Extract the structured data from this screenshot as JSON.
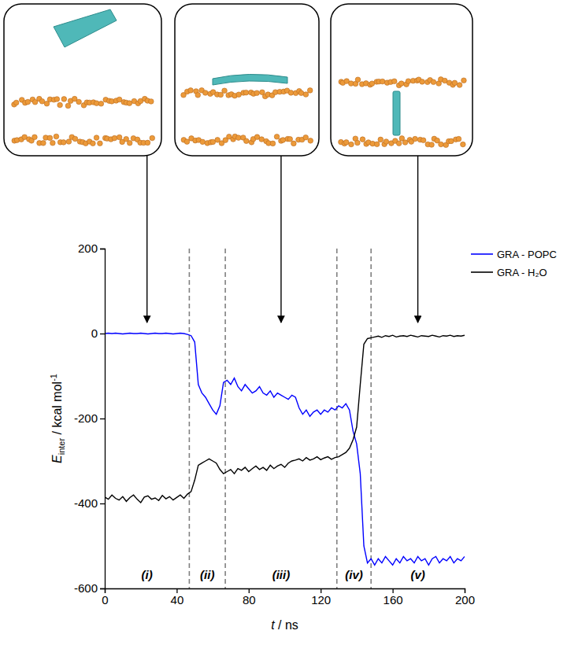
{
  "chart_data": {
    "type": "line",
    "xlabel": {
      "symbol": "t",
      "text": " / ns"
    },
    "ylabel": {
      "symbol": "E",
      "subscript": "inter",
      "text": " / kcal mol",
      "superscript": "-1"
    },
    "xlim": [
      0,
      200
    ],
    "xticks": [
      0,
      40,
      80,
      120,
      160,
      200
    ],
    "ylim": [
      -600,
      200
    ],
    "yticks": [
      -600,
      -400,
      -200,
      0,
      200
    ],
    "legend": "right",
    "dividers": [
      47,
      67,
      129,
      148
    ],
    "regions": [
      "(i)",
      "(ii)",
      "(iii)",
      "(iv)",
      "(v)"
    ],
    "x": [
      0,
      2,
      4,
      6,
      8,
      10,
      12,
      14,
      16,
      18,
      20,
      22,
      24,
      26,
      28,
      30,
      32,
      34,
      36,
      38,
      40,
      42,
      44,
      46,
      48,
      50,
      52,
      54,
      56,
      58,
      60,
      62,
      64,
      66,
      68,
      70,
      72,
      74,
      76,
      78,
      80,
      82,
      84,
      86,
      88,
      90,
      92,
      94,
      96,
      98,
      100,
      102,
      104,
      106,
      108,
      110,
      112,
      114,
      116,
      118,
      120,
      122,
      124,
      126,
      128,
      130,
      132,
      134,
      136,
      138,
      140,
      142,
      144,
      146,
      148,
      150,
      152,
      154,
      156,
      158,
      160,
      162,
      164,
      166,
      168,
      170,
      172,
      174,
      176,
      178,
      180,
      182,
      184,
      186,
      188,
      190,
      192,
      194,
      196,
      198,
      200
    ],
    "series": [
      {
        "name": "GRA - POPC",
        "color": "#0000ff",
        "values": [
          0,
          1,
          0,
          1,
          0,
          -1,
          0,
          1,
          0,
          0,
          1,
          0,
          -1,
          0,
          1,
          0,
          0,
          1,
          0,
          -1,
          0,
          1,
          0,
          -2,
          -5,
          -20,
          -120,
          -140,
          -150,
          -165,
          -180,
          -190,
          -170,
          -115,
          -110,
          -120,
          -105,
          -125,
          -135,
          -120,
          -130,
          -140,
          -135,
          -125,
          -140,
          -145,
          -135,
          -150,
          -140,
          -145,
          -150,
          -155,
          -145,
          -150,
          -175,
          -190,
          -180,
          -195,
          -185,
          -180,
          -190,
          -180,
          -185,
          -175,
          -180,
          -170,
          -175,
          -165,
          -180,
          -230,
          -260,
          -330,
          -500,
          -540,
          -530,
          -545,
          -530,
          -540,
          -525,
          -535,
          -545,
          -530,
          -540,
          -525,
          -535,
          -530,
          -540,
          -525,
          -535,
          -530,
          -545,
          -530,
          -525,
          -540,
          -530,
          -535,
          -525,
          -540,
          -530,
          -535,
          -525
        ]
      },
      {
        "name": "GRA - H₂O",
        "color": "#000000",
        "values": [
          -385,
          -390,
          -380,
          -388,
          -392,
          -384,
          -395,
          -386,
          -380,
          -390,
          -398,
          -385,
          -382,
          -390,
          -387,
          -393,
          -381,
          -389,
          -384,
          -392,
          -386,
          -380,
          -388,
          -378,
          -372,
          -345,
          -310,
          -305,
          -300,
          -295,
          -300,
          -305,
          -320,
          -330,
          -325,
          -320,
          -330,
          -318,
          -322,
          -315,
          -325,
          -318,
          -312,
          -320,
          -315,
          -322,
          -310,
          -318,
          -312,
          -308,
          -315,
          -305,
          -300,
          -298,
          -295,
          -300,
          -292,
          -298,
          -295,
          -290,
          -297,
          -293,
          -290,
          -296,
          -292,
          -290,
          -285,
          -280,
          -270,
          -250,
          -220,
          -120,
          -25,
          -12,
          -10,
          -8,
          -6,
          -9,
          -5,
          -7,
          -4,
          -8,
          -6,
          -5,
          -7,
          -4,
          -6,
          -8,
          -5,
          -6,
          -7,
          -4,
          -6,
          -8,
          -5,
          -6,
          -4,
          -7,
          -5,
          -6,
          -4
        ]
      }
    ]
  }
}
